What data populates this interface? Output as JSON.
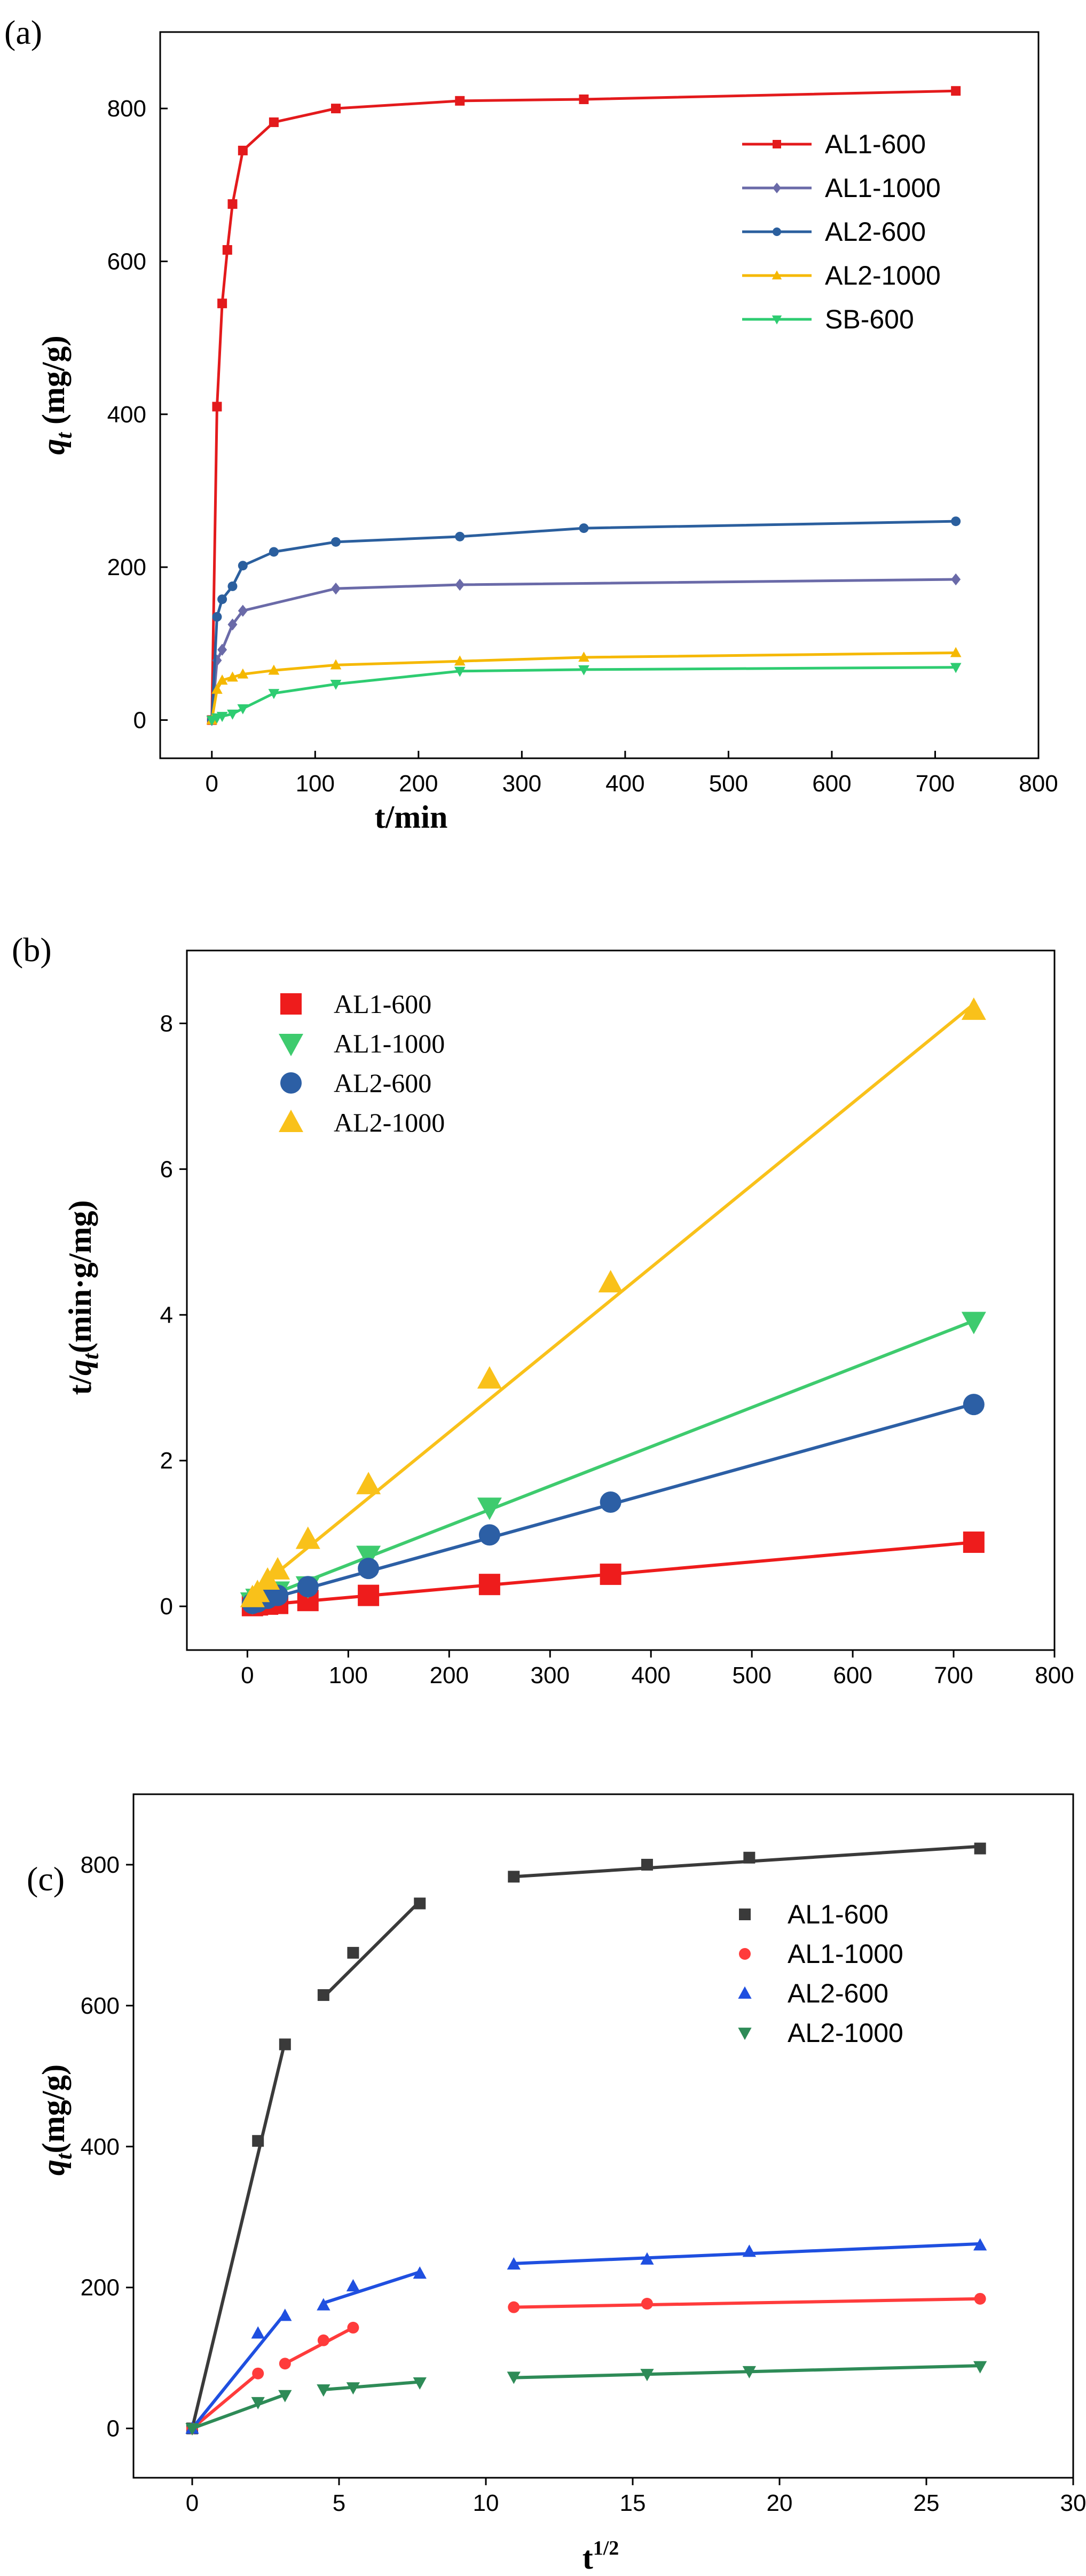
{
  "chart_data": [
    {
      "panel_label": "(a)",
      "type": "line",
      "xlabel": "t/min",
      "ylabel": "q_t (mg/g)",
      "ylabel_symbol": "q",
      "ylabel_sub": "t",
      "ylabel_unit": " (mg/g)",
      "xlim": [
        -50,
        800
      ],
      "ylim": [
        -50,
        900
      ],
      "xticks": [
        0,
        100,
        200,
        300,
        400,
        500,
        600,
        700,
        800
      ],
      "yticks": [
        0,
        200,
        400,
        600,
        800
      ],
      "legend_position": "top-right",
      "series": [
        {
          "name": "AL1-600",
          "color": "#e31a1c",
          "marker": "square",
          "x": [
            0,
            5,
            10,
            15,
            20,
            30,
            60,
            120,
            240,
            360,
            720
          ],
          "y": [
            0,
            410,
            545,
            615,
            675,
            745,
            782,
            800,
            810,
            812,
            823
          ]
        },
        {
          "name": "AL1-1000",
          "color": "#6a6aa8",
          "marker": "diamond",
          "x": [
            0,
            5,
            10,
            20,
            30,
            120,
            240,
            720
          ],
          "y": [
            0,
            78,
            92,
            125,
            143,
            172,
            177,
            184
          ]
        },
        {
          "name": "AL2-600",
          "color": "#2b5f9e",
          "marker": "circle",
          "x": [
            0,
            5,
            10,
            20,
            30,
            60,
            120,
            240,
            360,
            720
          ],
          "y": [
            0,
            135,
            158,
            175,
            202,
            220,
            233,
            240,
            251,
            260
          ]
        },
        {
          "name": "AL2-1000",
          "color": "#f5b800",
          "marker": "triangle-up",
          "x": [
            0,
            5,
            10,
            20,
            30,
            60,
            120,
            240,
            360,
            720
          ],
          "y": [
            0,
            40,
            52,
            56,
            60,
            65,
            72,
            77,
            82,
            88
          ]
        },
        {
          "name": "SB-600",
          "color": "#2ecc71",
          "marker": "triangle-down",
          "x": [
            0,
            5,
            10,
            20,
            30,
            60,
            120,
            240,
            360,
            720
          ],
          "y": [
            0,
            3,
            5,
            8,
            15,
            35,
            47,
            64,
            66,
            69
          ]
        }
      ]
    },
    {
      "panel_label": "(b)",
      "type": "scatter",
      "xlabel": "",
      "ylabel": "t/q_t(min·g/mg)",
      "ylabel_pre": "t/",
      "ylabel_symbol": "q",
      "ylabel_sub": "t",
      "ylabel_unit": "(min·g/mg)",
      "xlim": [
        -60,
        800
      ],
      "ylim": [
        -0.6,
        9.0
      ],
      "xticks": [
        0,
        100,
        200,
        300,
        400,
        500,
        600,
        700,
        800
      ],
      "yticks": [
        0,
        2,
        4,
        6,
        8
      ],
      "legend_position": "top-left",
      "series": [
        {
          "name": "AL1-600",
          "color": "#ee1c1c",
          "marker": "square",
          "x": [
            5,
            10,
            20,
            30,
            60,
            120,
            240,
            360,
            720
          ],
          "y": [
            0.01,
            0.02,
            0.03,
            0.04,
            0.08,
            0.15,
            0.3,
            0.44,
            0.88
          ],
          "fit": [
            0.0,
            1.22
          ]
        },
        {
          "name": "AL1-1000",
          "color": "#3ecb6e",
          "marker": "triangle-down",
          "x": [
            5,
            10,
            20,
            30,
            60,
            120,
            240,
            720
          ],
          "y": [
            0.06,
            0.11,
            0.16,
            0.21,
            0.28,
            0.7,
            1.36,
            3.91
          ],
          "fit": [
            0.03,
            5.4
          ]
        },
        {
          "name": "AL2-600",
          "color": "#2c5fa5",
          "marker": "circle",
          "x": [
            5,
            10,
            20,
            30,
            60,
            120,
            240,
            360,
            720
          ],
          "y": [
            0.04,
            0.06,
            0.11,
            0.15,
            0.27,
            0.52,
            0.98,
            1.43,
            2.77
          ],
          "fit": [
            0.02,
            3.83
          ]
        },
        {
          "name": "AL2-1000",
          "color": "#f9c11a",
          "marker": "triangle-up",
          "x": [
            5,
            10,
            20,
            30,
            60,
            120,
            240,
            360,
            720
          ],
          "y": [
            0.12,
            0.19,
            0.36,
            0.5,
            0.92,
            1.67,
            3.12,
            4.44,
            8.18
          ],
          "fit": [
            0.13,
            11.3
          ]
        }
      ]
    },
    {
      "panel_label": "(c)",
      "type": "scatter",
      "xlabel": "t^1/2",
      "xlabel_base": "t",
      "xlabel_sup": "1/2",
      "ylabel": "q_t(mg/g)",
      "ylabel_symbol": "q",
      "ylabel_sub": "t",
      "ylabel_unit": "(mg/g)",
      "xlim": [
        -2,
        30
      ],
      "ylim": [
        -70,
        900
      ],
      "xticks": [
        0,
        5,
        10,
        15,
        20,
        25,
        30
      ],
      "yticks": [
        0,
        200,
        400,
        600,
        800
      ],
      "legend_position": "top-right",
      "series": [
        {
          "name": "AL1-600",
          "color": "#3a3a3a",
          "marker": "square",
          "x": [
            0,
            2.24,
            3.16,
            4.47,
            5.48,
            7.75,
            10.95,
            15.49,
            18.97,
            26.83
          ],
          "y": [
            0,
            408,
            545,
            615,
            675,
            745,
            783,
            800,
            810,
            823
          ],
          "segments": [
            [
              [
                0,
                0
              ],
              [
                3.16,
                549
              ]
            ],
            [
              [
                4.47,
                612
              ],
              [
                7.75,
                748
              ]
            ],
            [
              [
                10.95,
                783
              ],
              [
                26.83,
                826
              ]
            ]
          ]
        },
        {
          "name": "AL1-1000",
          "color": "#ff3b3b",
          "marker": "circle",
          "x": [
            0,
            2.24,
            3.16,
            4.47,
            5.48,
            10.95,
            15.49,
            26.83
          ],
          "y": [
            0,
            78,
            92,
            125,
            143,
            172,
            177,
            184
          ],
          "segments": [
            [
              [
                0,
                0
              ],
              [
                2.24,
                78
              ]
            ],
            [
              [
                3.16,
                92
              ],
              [
                5.48,
                143
              ]
            ],
            [
              [
                10.95,
                172
              ],
              [
                26.83,
                184
              ]
            ]
          ]
        },
        {
          "name": "AL2-600",
          "color": "#1f4fe0",
          "marker": "triangle-up",
          "x": [
            0,
            2.24,
            3.16,
            4.47,
            5.48,
            7.75,
            10.95,
            15.49,
            18.97,
            26.83
          ],
          "y": [
            0,
            135,
            160,
            175,
            202,
            220,
            233,
            240,
            251,
            260
          ],
          "segments": [
            [
              [
                0,
                0
              ],
              [
                3.16,
                163
              ]
            ],
            [
              [
                4.47,
                178
              ],
              [
                7.75,
                222
              ]
            ],
            [
              [
                10.95,
                234
              ],
              [
                26.83,
                262
              ]
            ]
          ]
        },
        {
          "name": "AL2-1000",
          "color": "#2e8b57",
          "marker": "triangle-down",
          "x": [
            0,
            2.24,
            3.16,
            4.47,
            5.48,
            7.75,
            10.95,
            15.49,
            18.97,
            26.83
          ],
          "y": [
            0,
            37,
            47,
            55,
            58,
            65,
            73,
            77,
            81,
            88
          ],
          "segments": [
            [
              [
                0,
                0
              ],
              [
                3.16,
                48
              ]
            ],
            [
              [
                4.47,
                55
              ],
              [
                7.75,
                66
              ]
            ],
            [
              [
                10.95,
                72
              ],
              [
                26.83,
                89
              ]
            ]
          ]
        }
      ]
    }
  ]
}
